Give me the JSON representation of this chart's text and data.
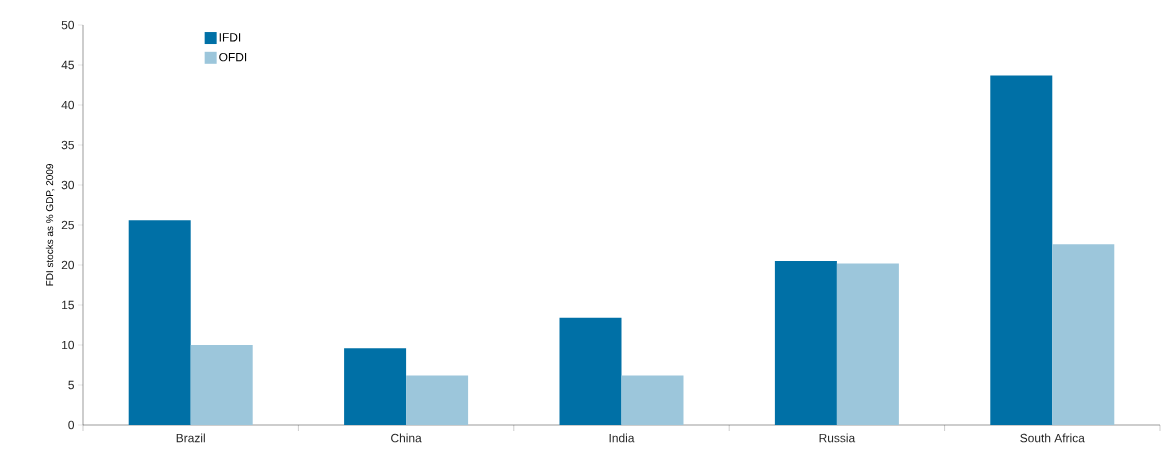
{
  "chart_data": {
    "type": "bar",
    "ylabel": "FDI stocks as % GDP, 2009",
    "categories": [
      "Brazil",
      "China",
      "India",
      "Russia",
      "South Africa"
    ],
    "series": [
      {
        "name": "IFDI",
        "color": "#0070a6",
        "values": [
          25.6,
          9.6,
          13.4,
          20.5,
          43.7
        ]
      },
      {
        "name": "OFDI",
        "color": "#9cc6db",
        "values": [
          10.0,
          6.2,
          6.2,
          20.2,
          22.6
        ]
      }
    ],
    "ylim": [
      0,
      50
    ],
    "yticks": [
      0,
      5,
      10,
      15,
      20,
      25,
      30,
      35,
      40,
      45,
      50
    ],
    "legend": "top left"
  }
}
